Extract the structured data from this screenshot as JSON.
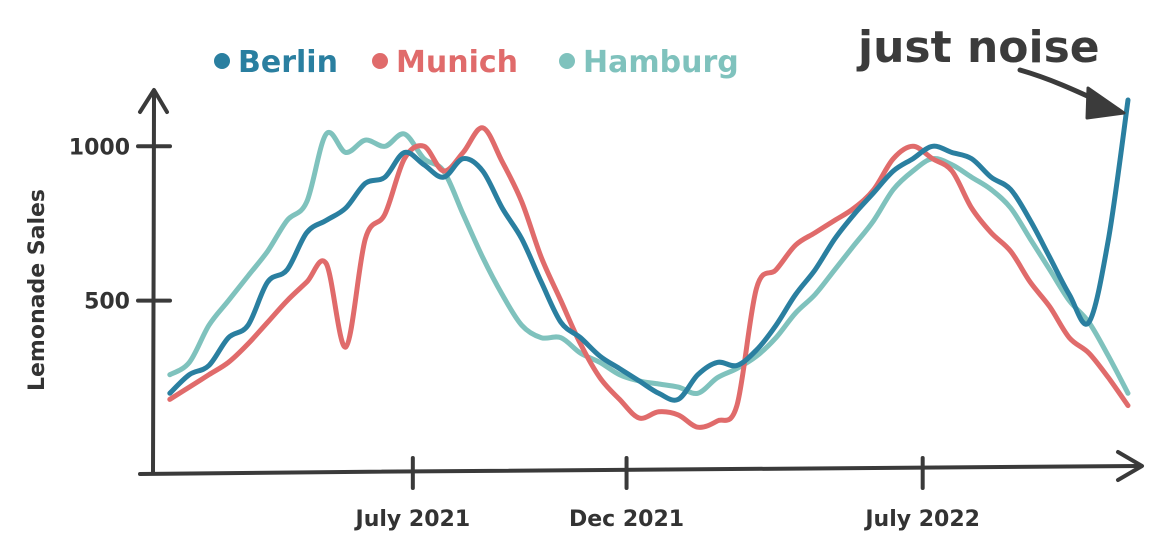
{
  "chart_data": {
    "type": "line",
    "title": "",
    "xlabel": "",
    "ylabel": "Lemonade Sales",
    "xlim": [
      "2021-01-01",
      "2022-11-30"
    ],
    "ylim": [
      0,
      1150
    ],
    "legend_position": "top-left",
    "grid": false,
    "x_ticks": [
      {
        "date": "2021-07-01",
        "label": "July 2021"
      },
      {
        "date": "2021-12-01",
        "label": "Dec 2021"
      },
      {
        "date": "2022-07-01",
        "label": "July 2022"
      }
    ],
    "y_ticks": [
      {
        "value": 500,
        "label": "500"
      },
      {
        "value": 1000,
        "label": "1000"
      }
    ],
    "annotation": {
      "text": "just noise",
      "points_to": "end of Berlin series"
    },
    "x": [
      "2021-01-08",
      "2021-01-22",
      "2021-02-05",
      "2021-02-19",
      "2021-03-05",
      "2021-03-19",
      "2021-04-02",
      "2021-04-16",
      "2021-04-30",
      "2021-05-14",
      "2021-05-28",
      "2021-06-11",
      "2021-06-25",
      "2021-07-09",
      "2021-07-23",
      "2021-08-06",
      "2021-08-20",
      "2021-09-03",
      "2021-09-17",
      "2021-10-01",
      "2021-10-15",
      "2021-10-29",
      "2021-11-12",
      "2021-11-26",
      "2021-12-10",
      "2021-12-24",
      "2022-01-07",
      "2022-01-21",
      "2022-02-04",
      "2022-02-18",
      "2022-03-04",
      "2022-03-18",
      "2022-04-01",
      "2022-04-15",
      "2022-04-29",
      "2022-05-13",
      "2022-05-27",
      "2022-06-10",
      "2022-06-24",
      "2022-07-08",
      "2022-07-22",
      "2022-08-05",
      "2022-08-19",
      "2022-09-02",
      "2022-09-16",
      "2022-09-30",
      "2022-10-14",
      "2022-10-28",
      "2022-11-11",
      "2022-11-25"
    ],
    "series": [
      {
        "name": "Berlin",
        "color": "#2a7fa0",
        "values": [
          200,
          260,
          290,
          380,
          420,
          560,
          600,
          720,
          760,
          800,
          880,
          900,
          980,
          940,
          900,
          960,
          920,
          800,
          700,
          560,
          430,
          380,
          320,
          280,
          240,
          200,
          180,
          260,
          300,
          290,
          340,
          420,
          520,
          600,
          700,
          780,
          850,
          920,
          960,
          1000,
          980,
          960,
          900,
          860,
          760,
          640,
          520,
          430,
          700,
          1150
        ]
      },
      {
        "name": "Munich",
        "color": "#e06b6b",
        "values": [
          180,
          220,
          260,
          300,
          360,
          430,
          500,
          560,
          620,
          350,
          700,
          780,
          960,
          1000,
          920,
          980,
          1060,
          950,
          820,
          640,
          500,
          360,
          250,
          180,
          120,
          140,
          130,
          90,
          110,
          160,
          540,
          600,
          680,
          720,
          760,
          800,
          860,
          960,
          1000,
          960,
          920,
          800,
          720,
          660,
          560,
          480,
          380,
          330,
          250,
          160
        ]
      },
      {
        "name": "Hamburg",
        "color": "#7fc2bd",
        "values": [
          260,
          300,
          420,
          500,
          580,
          660,
          760,
          820,
          1040,
          980,
          1020,
          1000,
          1040,
          960,
          920,
          780,
          640,
          520,
          420,
          380,
          380,
          330,
          300,
          260,
          240,
          230,
          220,
          200,
          250,
          280,
          320,
          380,
          460,
          520,
          600,
          680,
          760,
          860,
          920,
          960,
          940,
          900,
          860,
          800,
          700,
          600,
          500,
          430,
          320,
          200
        ]
      }
    ]
  }
}
